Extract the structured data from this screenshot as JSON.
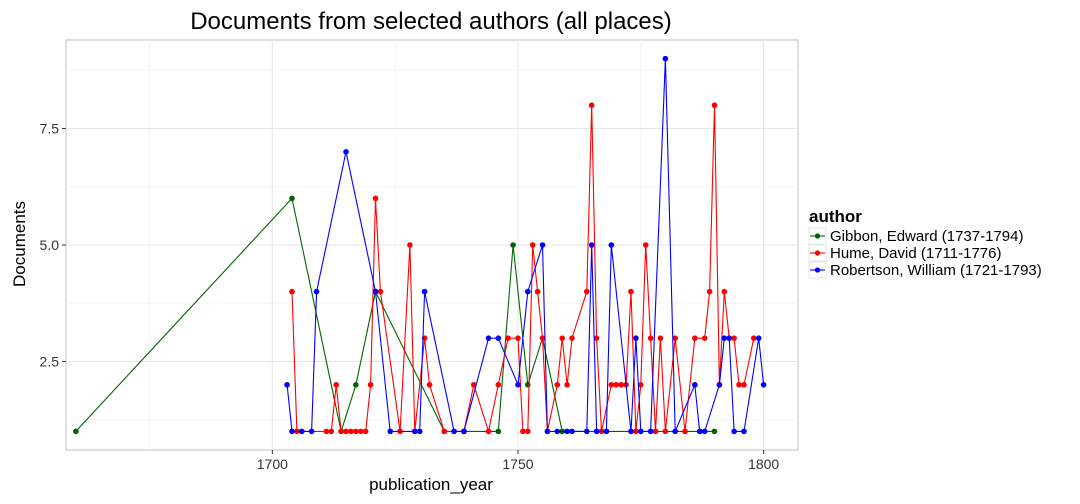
{
  "chart_data": {
    "type": "line",
    "title": "Documents from selected authors (all places)",
    "xlabel": "publication_year",
    "ylabel": "Documents",
    "xlim": [
      1658,
      1807
    ],
    "ylim": [
      0.6,
      9.4
    ],
    "x_ticks": [
      1700,
      1750,
      1800
    ],
    "x_tick_labels": [
      "1700",
      "1750",
      "1800"
    ],
    "x_minor_ticks": [
      1675,
      1725,
      1775
    ],
    "y_ticks": [
      2.5,
      5.0,
      7.5
    ],
    "y_tick_labels": [
      "2.5",
      "5.0",
      "7.5"
    ],
    "y_minor_ticks": [
      1.25,
      3.75,
      6.25,
      8.75
    ],
    "grid": true,
    "legend": {
      "title": "author",
      "position": "right"
    },
    "series": [
      {
        "name": "Gibbon, Edward (1737-1794)",
        "color": "#006400",
        "x": [
          1660,
          1704,
          1714,
          1717,
          1721,
          1735,
          1739,
          1746,
          1749,
          1752,
          1755,
          1759,
          1768,
          1778,
          1787,
          1790
        ],
        "y": [
          1,
          6,
          1,
          2,
          4,
          1,
          1,
          1,
          5,
          2,
          3,
          1,
          1,
          1,
          1,
          1
        ]
      },
      {
        "name": "Hume, David (1711-1776)",
        "color": "#ff0000",
        "x": [
          1704,
          1705,
          1711,
          1712,
          1713,
          1714,
          1715,
          1716,
          1717,
          1718,
          1719,
          1720,
          1721,
          1722,
          1726,
          1728,
          1729,
          1731,
          1732,
          1735,
          1739,
          1741,
          1744,
          1746,
          1748,
          1750,
          1751,
          1752,
          1753,
          1754,
          1755,
          1756,
          1758,
          1759,
          1760,
          1761,
          1764,
          1765,
          1766,
          1767,
          1769,
          1770,
          1771,
          1772,
          1773,
          1774,
          1775,
          1776,
          1777,
          1778,
          1779,
          1780,
          1782,
          1784,
          1786,
          1788,
          1789,
          1790,
          1791,
          1792,
          1793,
          1794,
          1795,
          1796,
          1798
        ],
        "y": [
          4,
          1,
          1,
          1,
          2,
          1,
          1,
          1,
          1,
          1,
          1,
          2,
          6,
          4,
          1,
          5,
          1,
          3,
          2,
          1,
          1,
          2,
          1,
          2,
          3,
          3,
          1,
          1,
          5,
          4,
          3,
          1,
          2,
          3,
          2,
          3,
          4,
          8,
          3,
          1,
          2,
          2,
          2,
          2,
          4,
          1,
          2,
          5,
          3,
          1,
          3,
          1,
          3,
          1,
          3,
          3,
          4,
          8,
          2,
          4,
          3,
          3,
          2,
          2,
          3
        ]
      },
      {
        "name": "Robertson, William (1721-1793)",
        "color": "#0000ff",
        "x": [
          1703,
          1704,
          1706,
          1708,
          1709,
          1715,
          1721,
          1724,
          1729,
          1730,
          1731,
          1737,
          1739,
          1744,
          1746,
          1750,
          1752,
          1755,
          1756,
          1758,
          1760,
          1761,
          1764,
          1765,
          1766,
          1768,
          1769,
          1773,
          1774,
          1775,
          1777,
          1780,
          1782,
          1786,
          1787,
          1788,
          1791,
          1792,
          1793,
          1794,
          1796,
          1799,
          1800
        ],
        "y": [
          2,
          1,
          1,
          1,
          4,
          7,
          4,
          1,
          1,
          1,
          4,
          1,
          1,
          3,
          3,
          2,
          4,
          5,
          1,
          1,
          1,
          1,
          1,
          5,
          1,
          1,
          5,
          1,
          3,
          1,
          1,
          9,
          1,
          2,
          1,
          1,
          2,
          3,
          3,
          1,
          1,
          3,
          2
        ]
      }
    ]
  }
}
